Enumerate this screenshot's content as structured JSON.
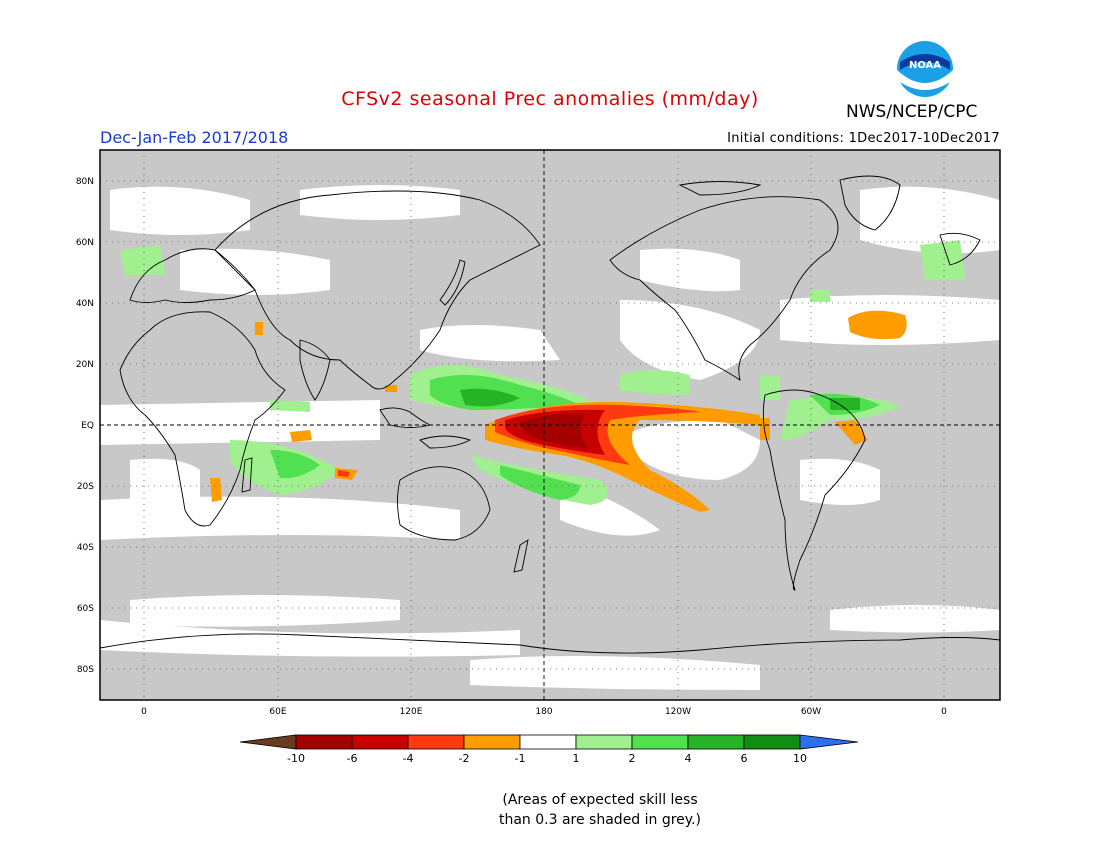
{
  "header": {
    "title": "CFSv2 seasonal Prec anomalies (mm/day)",
    "agency": "NWS/NCEP/CPC",
    "logo_text": "NOAA",
    "season": "Dec-Jan-Feb 2017/2018",
    "initial_conditions": "Initial conditions: 1Dec2017-10Dec2017"
  },
  "map": {
    "lat_labels": [
      "80N",
      "60N",
      "40N",
      "20N",
      "EQ",
      "20S",
      "40S",
      "60S",
      "80S"
    ],
    "lon_labels": [
      "0",
      "60E",
      "120E",
      "180",
      "120W",
      "60W",
      "0"
    ]
  },
  "legend": {
    "colors": [
      "#6b3a22",
      "#a50000",
      "#c80000",
      "#ff3a10",
      "#ff9c00",
      "#ffffff",
      "#a0f090",
      "#50e050",
      "#26b426",
      "#128c12",
      "#2c6ef0"
    ],
    "labels": [
      "-10",
      "-6",
      "-4",
      "-2",
      "-1",
      "1",
      "2",
      "4",
      "6",
      "10"
    ]
  },
  "footer": {
    "note_line1": "(Areas of expected skill less",
    "note_line2": "than 0.3 are shaded in grey.)"
  },
  "colors": {
    "grey_mask": "#c8c8c8",
    "title_red": "#e00000",
    "season_blue": "#1a3ccc"
  }
}
